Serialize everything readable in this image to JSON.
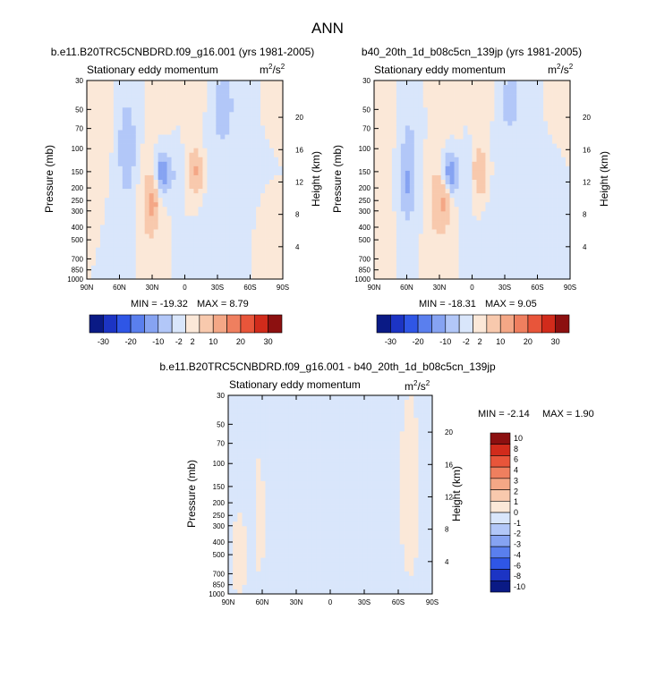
{
  "page_title": "ANN",
  "colors": {
    "cb_main": [
      "#0a1a85",
      "#1c34c4",
      "#2f56e6",
      "#5a7fee",
      "#86a3f2",
      "#b2c7f8",
      "#d9e6fb",
      "#fbe8d8",
      "#f8c9ad",
      "#f4a786",
      "#ef7f5f",
      "#e8553a",
      "#d12b1b",
      "#8c1010"
    ],
    "cb_diff": [
      "#0a1a85",
      "#1c34c4",
      "#2f56e6",
      "#5a7fee",
      "#86a3f2",
      "#b2c7f8",
      "#d9e6fb",
      "#fbe8d8",
      "#f8c9ad",
      "#f4a786",
      "#ef7f5f",
      "#e8553a",
      "#d12b1b",
      "#8c1010"
    ]
  },
  "chart_data": [
    {
      "type": "heatmap",
      "title": "b.e11.B20TRC5CNBDRD.f09_g16.001 (yrs 1981-2005)",
      "subtitle": "Stationary eddy momentum",
      "units_base": "m",
      "units_exp1": "2",
      "units_sep": "/s",
      "units_exp2": "2",
      "ylabel": "Pressure (mb)",
      "ylabel_right": "Height (km)",
      "x_ticks": [
        "90N",
        "60N",
        "30N",
        "0",
        "30S",
        "60S",
        "90S"
      ],
      "x_range": [
        90,
        -90
      ],
      "y_ticks": [
        "30",
        "50",
        "70",
        "100",
        "150",
        "200",
        "250",
        "300",
        "400",
        "500",
        "700",
        "850",
        "1000"
      ],
      "y_tick_values": [
        30,
        50,
        70,
        100,
        150,
        200,
        250,
        300,
        400,
        500,
        700,
        850,
        1000
      ],
      "y_scale": "log",
      "right_ticks": [
        "20",
        "16",
        "12",
        "8",
        "4"
      ],
      "right_tick_values": [
        20,
        16,
        12,
        8,
        4
      ],
      "min_label": "MIN = -19.32",
      "max_label": "MAX =   8.79",
      "fields": [
        {
          "lat": 53,
          "p": 100,
          "sx": 9,
          "sp": 1.0,
          "v": -3.6
        },
        {
          "lat": 20,
          "p": 155,
          "sx": 7,
          "sp": 0.35,
          "v": -8
        },
        {
          "lat": 32,
          "p": 260,
          "sx": 9,
          "sp": 0.75,
          "v": 3.6
        },
        {
          "lat": 28,
          "p": 260,
          "sx": 5,
          "sp": 0.35,
          "v": 3.2
        },
        {
          "lat": -10,
          "p": 150,
          "sx": 7,
          "sp": 0.4,
          "v": 5.5
        },
        {
          "lat": -35,
          "p": 45,
          "sx": 12,
          "sp": 0.7,
          "v": -3.2
        },
        {
          "lat": -30,
          "p": 200,
          "sx": 15,
          "sp": 1.2,
          "v": -1.0
        },
        {
          "lat": 7,
          "p": 180,
          "sx": 4,
          "sp": 0.8,
          "v": -1.8
        },
        {
          "lat": -75,
          "p": 850,
          "sx": 6,
          "sp": 0.5,
          "v": 1.2
        },
        {
          "lat": 75,
          "p": 60,
          "sx": 8,
          "sp": 0.7,
          "v": 1.2
        },
        {
          "lat": -5,
          "p": 40,
          "sx": 25,
          "sp": 0.6,
          "v": 1.0
        }
      ]
    },
    {
      "type": "heatmap",
      "title": "b40_20th_1d_b08c5cn_139jp (yrs 1981-2005)",
      "subtitle": "Stationary eddy momentum",
      "units_base": "m",
      "units_exp1": "2",
      "units_sep": "/s",
      "units_exp2": "2",
      "ylabel": "Pressure (mb)",
      "ylabel_right": "Height (km)",
      "x_ticks": [
        "90N",
        "60N",
        "30N",
        "0",
        "30S",
        "60S",
        "90S"
      ],
      "x_range": [
        90,
        -90
      ],
      "y_ticks": [
        "30",
        "50",
        "70",
        "100",
        "150",
        "200",
        "250",
        "300",
        "400",
        "500",
        "700",
        "850",
        "1000"
      ],
      "y_tick_values": [
        30,
        50,
        70,
        100,
        150,
        200,
        250,
        300,
        400,
        500,
        700,
        850,
        1000
      ],
      "y_scale": "log",
      "right_ticks": [
        "20",
        "16",
        "12",
        "8",
        "4"
      ],
      "right_tick_values": [
        20,
        16,
        12,
        8,
        4
      ],
      "min_label": "MIN = -18.31",
      "max_label": "MAX =   9.05",
      "fields": [
        {
          "lat": 58,
          "p": 140,
          "sx": 8,
          "sp": 0.9,
          "v": -4
        },
        {
          "lat": 60,
          "p": 220,
          "sx": 4,
          "sp": 0.5,
          "v": -2
        },
        {
          "lat": 20,
          "p": 155,
          "sx": 7,
          "sp": 0.35,
          "v": -8
        },
        {
          "lat": 30,
          "p": 255,
          "sx": 10,
          "sp": 0.75,
          "v": 3.6
        },
        {
          "lat": 25,
          "p": 250,
          "sx": 5,
          "sp": 0.35,
          "v": 3.2
        },
        {
          "lat": -8,
          "p": 150,
          "sx": 7,
          "sp": 0.4,
          "v": 5.2
        },
        {
          "lat": -35,
          "p": 42,
          "sx": 11,
          "sp": 0.6,
          "v": -3.2
        },
        {
          "lat": -30,
          "p": 200,
          "sx": 15,
          "sp": 1.2,
          "v": -1.0
        },
        {
          "lat": 5,
          "p": 180,
          "sx": 4,
          "sp": 0.8,
          "v": -1.8
        },
        {
          "lat": 80,
          "p": 100,
          "sx": 6,
          "sp": 1.4,
          "v": 1.4
        },
        {
          "lat": -5,
          "p": 40,
          "sx": 25,
          "sp": 0.6,
          "v": 1.0
        }
      ]
    },
    {
      "type": "heatmap",
      "title": "b.e11.B20TRC5CNBDRD.f09_g16.001 - b40_20th_1d_b08c5cn_139jp",
      "subtitle": "Stationary eddy momentum",
      "units_base": "m",
      "units_exp1": "2",
      "units_sep": "/s",
      "units_exp2": "2",
      "ylabel": "Pressure (mb)",
      "ylabel_right": "Height (km)",
      "x_ticks": [
        "90N",
        "60N",
        "30N",
        "0",
        "30S",
        "60S",
        "90S"
      ],
      "x_range": [
        90,
        -90
      ],
      "y_ticks": [
        "30",
        "50",
        "70",
        "100",
        "150",
        "200",
        "250",
        "300",
        "400",
        "500",
        "700",
        "850",
        "1000"
      ],
      "y_tick_values": [
        30,
        50,
        70,
        100,
        150,
        200,
        250,
        300,
        400,
        500,
        700,
        850,
        1000
      ],
      "y_scale": "log",
      "right_ticks": [
        "20",
        "16",
        "12",
        "8",
        "4"
      ],
      "right_tick_values": [
        20,
        16,
        12,
        8,
        4
      ],
      "min_label": "MIN =  -2.14",
      "max_label": "MAX =   1.90",
      "fields": [
        {
          "lat": 62,
          "p": 220,
          "sx": 5,
          "sp": 1.4,
          "v": 0.7
        },
        {
          "lat": 62,
          "p": 300,
          "sx": 3,
          "sp": 0.5,
          "v": 0.4
        },
        {
          "lat": -70,
          "p": 150,
          "sx": 10,
          "sp": 1.8,
          "v": 0.7
        },
        {
          "lat": 80,
          "p": 500,
          "sx": 8,
          "sp": 1.0,
          "v": 0.6
        },
        {
          "lat": -15,
          "p": 480,
          "sx": 12,
          "sp": 0.35,
          "v": 0.6
        },
        {
          "lat": 10,
          "p": 100,
          "sx": 45,
          "sp": 2.5,
          "v": -0.6
        }
      ]
    }
  ],
  "colorbar_main": {
    "levels": [
      "-30",
      "-20",
      "-10",
      "-2",
      "2",
      "10",
      "20",
      "30"
    ]
  },
  "colorbar_diff": {
    "levels": [
      "10",
      "8",
      "6",
      "4",
      "3",
      "2",
      "1",
      "0",
      "-1",
      "-2",
      "-3",
      "-4",
      "-6",
      "-8",
      "-10"
    ]
  }
}
